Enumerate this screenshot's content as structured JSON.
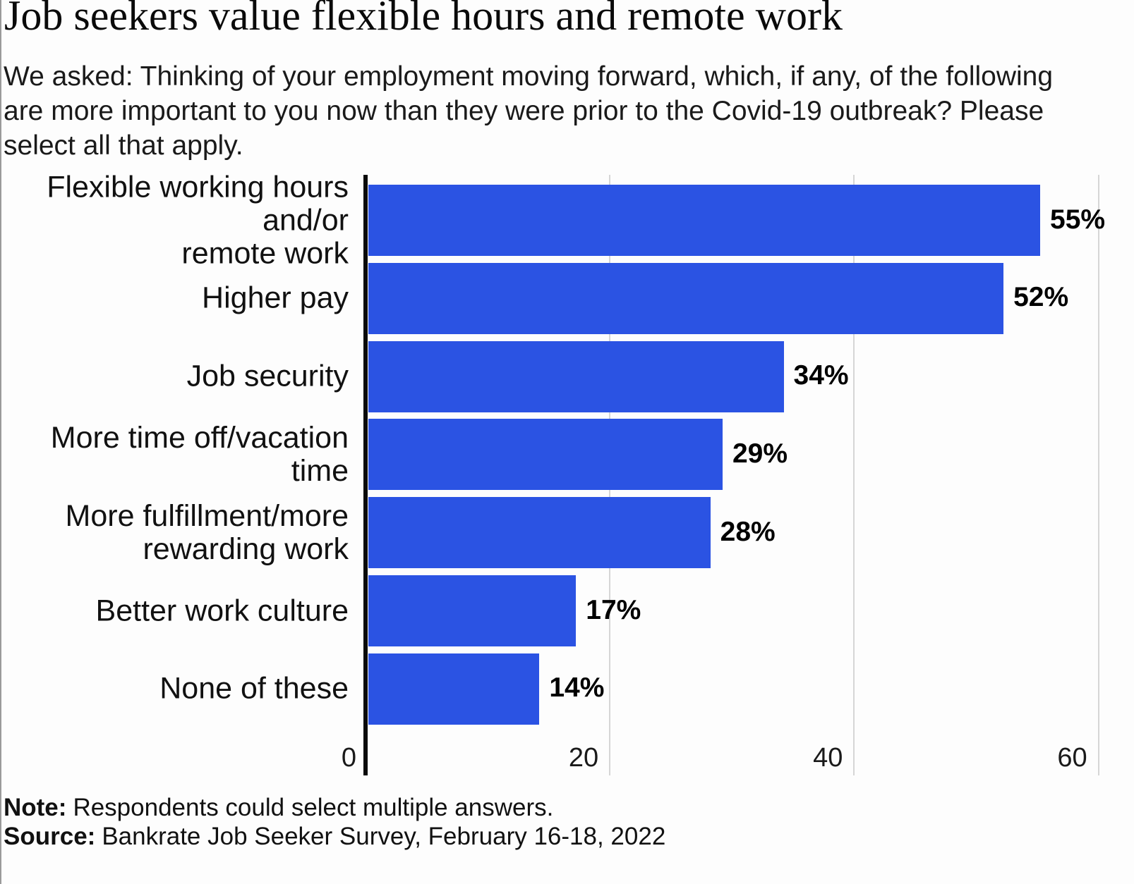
{
  "page": {
    "background_color": "#fdfdfd"
  },
  "title": "Job seekers value flexible hours and remote work",
  "subtitle_lines": [
    "We asked: Thinking of your employment moving forward, which, if any, of the following",
    "are more important to you now than they were prior to the Covid-19 outbreak? Please",
    "select all that apply."
  ],
  "chart_data": {
    "type": "bar",
    "orientation": "horizontal",
    "categories": [
      "Flexible working hours and/or\nremote work",
      "Higher pay",
      "Job security",
      "More time off/vacation time",
      "More fulfillment/more\nrewarding work",
      "Better work culture",
      "None of these"
    ],
    "values": [
      55,
      52,
      34,
      29,
      28,
      17,
      14
    ],
    "value_labels": [
      "55%",
      "52%",
      "34%",
      "29%",
      "28%",
      "17%",
      "14%"
    ],
    "xlabel": "",
    "ylabel": "",
    "xlim": [
      0,
      60
    ],
    "x_ticks": [
      0,
      20,
      40,
      60
    ],
    "x_tick_labels": [
      "0",
      "20",
      "40",
      "60"
    ],
    "grid": true,
    "legend": false,
    "bar_color": "#2b53e3",
    "gridline_color": "#d6d6d6",
    "axis_color": "#0a0a0a",
    "value_label_color": "#000000"
  },
  "note": {
    "label": "Note:",
    "text": "Respondents could select multiple answers."
  },
  "source": {
    "label": "Source:",
    "text": "Bankrate Job Seeker Survey, February 16-18, 2022"
  }
}
